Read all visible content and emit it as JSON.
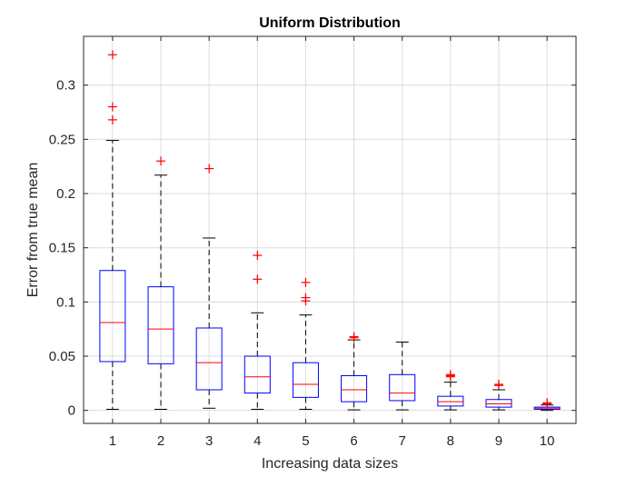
{
  "chart_data": {
    "type": "boxplot",
    "title": "Uniform Distribution",
    "xlabel": "Increasing data sizes",
    "ylabel": "Error from true mean",
    "ylim": [
      -0.012,
      0.345
    ],
    "yticks": [
      0,
      0.05,
      0.1,
      0.15,
      0.2,
      0.25,
      0.3
    ],
    "ytick_labels": [
      "0",
      "0.05",
      "0.1",
      "0.15",
      "0.2",
      "0.25",
      "0.3"
    ],
    "grid": true,
    "categories": [
      "1",
      "2",
      "3",
      "4",
      "5",
      "6",
      "7",
      "8",
      "9",
      "10"
    ],
    "boxes": [
      {
        "category": "1",
        "whisker_low": 0.001,
        "q1": 0.045,
        "median": 0.081,
        "q3": 0.129,
        "whisker_high": 0.249,
        "outliers": [
          0.268,
          0.28,
          0.328
        ]
      },
      {
        "category": "2",
        "whisker_low": 0.001,
        "q1": 0.043,
        "median": 0.075,
        "q3": 0.114,
        "whisker_high": 0.217,
        "outliers": [
          0.23
        ]
      },
      {
        "category": "3",
        "whisker_low": 0.002,
        "q1": 0.019,
        "median": 0.044,
        "q3": 0.076,
        "whisker_high": 0.159,
        "outliers": [
          0.223
        ]
      },
      {
        "category": "4",
        "whisker_low": 0.001,
        "q1": 0.016,
        "median": 0.031,
        "q3": 0.05,
        "whisker_high": 0.09,
        "outliers": [
          0.121,
          0.143
        ]
      },
      {
        "category": "5",
        "whisker_low": 0.001,
        "q1": 0.012,
        "median": 0.024,
        "q3": 0.044,
        "whisker_high": 0.088,
        "outliers": [
          0.101,
          0.104,
          0.118
        ]
      },
      {
        "category": "6",
        "whisker_low": 0.0005,
        "q1": 0.008,
        "median": 0.019,
        "q3": 0.032,
        "whisker_high": 0.065,
        "outliers": [
          0.067,
          0.068
        ]
      },
      {
        "category": "7",
        "whisker_low": 0.0005,
        "q1": 0.009,
        "median": 0.016,
        "q3": 0.033,
        "whisker_high": 0.063,
        "outliers": []
      },
      {
        "category": "8",
        "whisker_low": 0.0005,
        "q1": 0.004,
        "median": 0.008,
        "q3": 0.013,
        "whisker_high": 0.026,
        "outliers": [
          0.031,
          0.032,
          0.033
        ]
      },
      {
        "category": "9",
        "whisker_low": 0.0005,
        "q1": 0.003,
        "median": 0.006,
        "q3": 0.01,
        "whisker_high": 0.019,
        "outliers": [
          0.023,
          0.024
        ]
      },
      {
        "category": "10",
        "whisker_low": 0.0,
        "q1": 0.001,
        "median": 0.002,
        "q3": 0.003,
        "whisker_high": 0.005,
        "outliers": [
          0.006,
          0.007
        ]
      }
    ],
    "colors": {
      "box": "#0000ff",
      "median": "#ff0000",
      "whisker": "#000000",
      "outlier": "#ff0000",
      "grid": "#dcdcdc",
      "axis": "#262626"
    }
  }
}
